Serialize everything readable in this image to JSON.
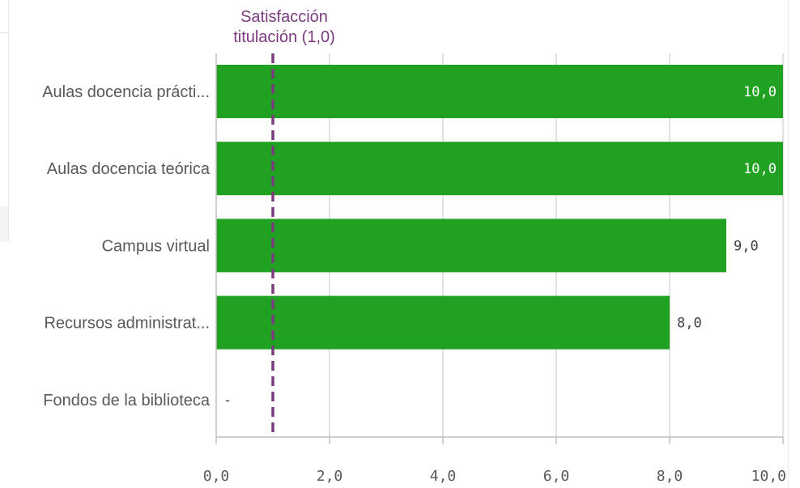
{
  "chart_data": {
    "type": "bar",
    "orientation": "horizontal",
    "categories": [
      "Aulas docencia prácti...",
      "Aulas docencia teórica",
      "Campus virtual",
      "Recursos administrat...",
      "Fondos de la biblioteca"
    ],
    "values": [
      10.0,
      10.0,
      9.0,
      8.0,
      null
    ],
    "value_labels": [
      "10,0",
      "10,0",
      "9,0",
      "8,0",
      "-"
    ],
    "xlim": [
      0,
      10
    ],
    "x_ticks": [
      0,
      2,
      4,
      6,
      8,
      10
    ],
    "x_tick_labels": [
      "0,0",
      "2,0",
      "4,0",
      "6,0",
      "8,0",
      "10,0"
    ],
    "grid": true,
    "bar_color": "#21a121",
    "reference_line": {
      "value": 1.0,
      "label_lines": [
        "Satisfacción",
        "titulación (1,0)"
      ],
      "color": "#7c3a7f",
      "style": "dashed"
    }
  }
}
